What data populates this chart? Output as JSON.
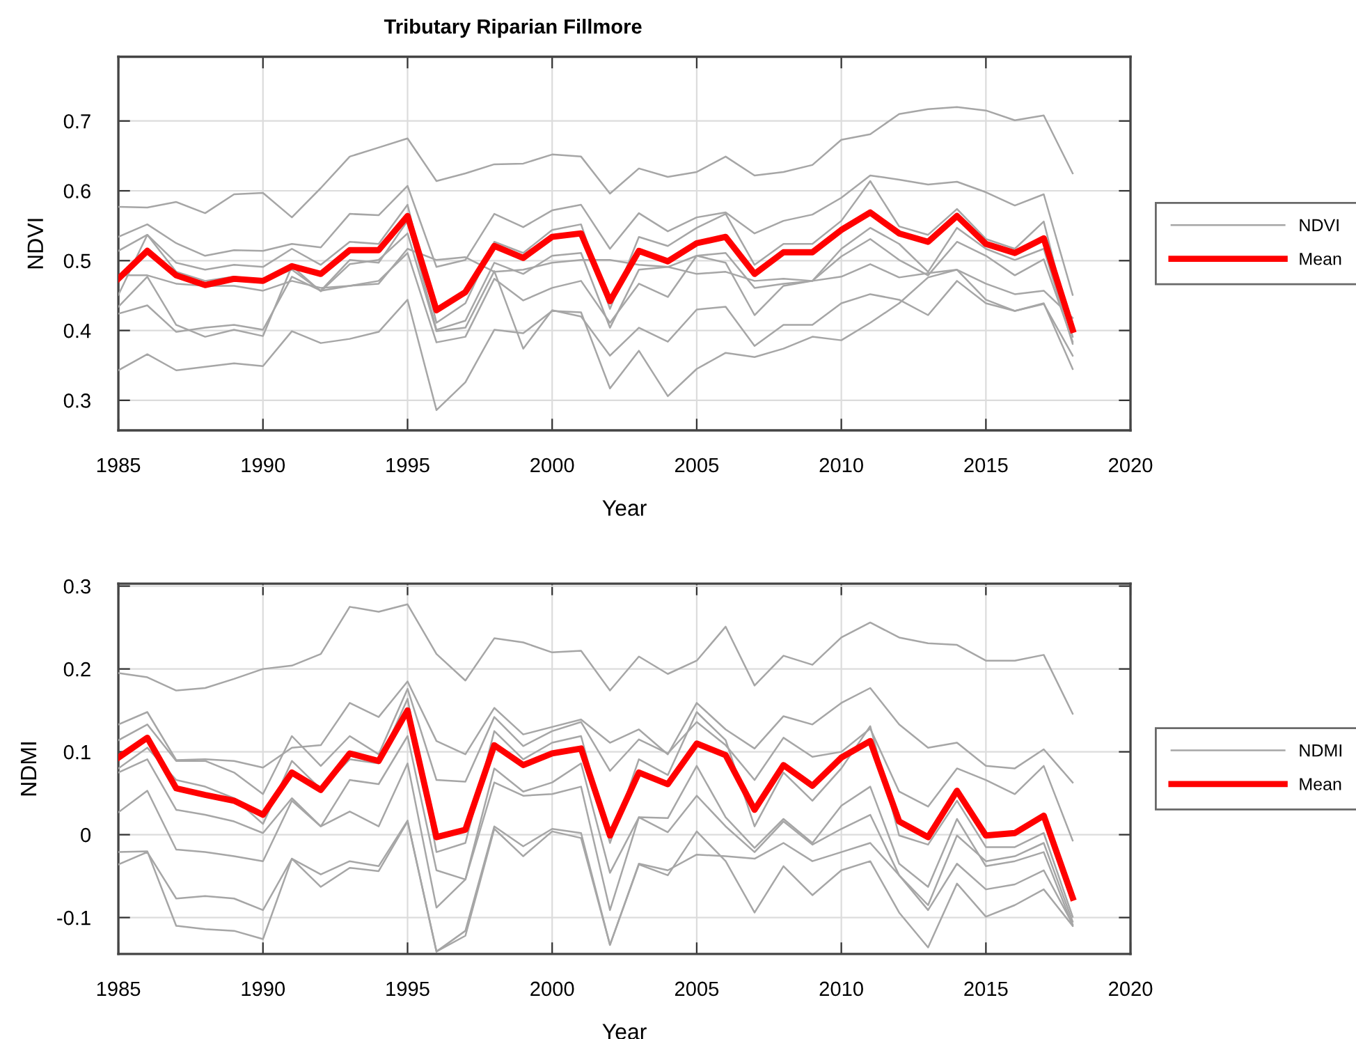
{
  "chart_data": [
    {
      "type": "line",
      "title": "Tributary Riparian Fillmore",
      "xlabel": "Year",
      "ylabel": "NDVI",
      "x": [
        1985,
        1986,
        1987,
        1988,
        1989,
        1990,
        1991,
        1992,
        1993,
        1994,
        1995,
        1996,
        1997,
        1998,
        1999,
        2000,
        2001,
        2002,
        2003,
        2004,
        2005,
        2006,
        2007,
        2008,
        2009,
        2010,
        2011,
        2012,
        2013,
        2014,
        2015,
        2016,
        2017,
        2018
      ],
      "xlim": [
        1985,
        2020
      ],
      "xticks": [
        1985,
        1990,
        1995,
        2000,
        2005,
        2010,
        2015,
        2020
      ],
      "ylim": [
        0.257,
        0.792
      ],
      "yticks": [
        0.3,
        0.4,
        0.5,
        0.6,
        0.7
      ],
      "grid": true,
      "legend": "right",
      "series": [
        {
          "name": "NDVI",
          "color": "#a6a6a6",
          "values": [
            0.577,
            0.576,
            0.584,
            0.568,
            0.595,
            0.597,
            0.562,
            0.604,
            0.649,
            0.662,
            0.675,
            0.614,
            0.625,
            0.638,
            0.639,
            0.652,
            0.649,
            0.596,
            0.632,
            0.62,
            0.627,
            0.649,
            0.622,
            0.627,
            0.637,
            0.673,
            0.681,
            0.71,
            0.717,
            0.72,
            0.715,
            0.701,
            0.708,
            0.625
          ]
        },
        {
          "color": "#a6a6a6",
          "values": [
            0.534,
            0.552,
            0.525,
            0.507,
            0.515,
            0.514,
            0.524,
            0.519,
            0.567,
            0.565,
            0.607,
            0.491,
            0.501,
            0.567,
            0.548,
            0.572,
            0.58,
            0.517,
            0.568,
            0.542,
            0.562,
            0.569,
            0.539,
            0.557,
            0.566,
            0.59,
            0.622,
            0.616,
            0.609,
            0.613,
            0.598,
            0.579,
            0.595,
            0.451
          ]
        },
        {
          "color": "#a6a6a6",
          "values": [
            0.343,
            0.366,
            0.343,
            0.348,
            0.353,
            0.349,
            0.399,
            0.382,
            0.388,
            0.398,
            0.444,
            0.286,
            0.326,
            0.401,
            0.396,
            0.428,
            0.426,
            0.317,
            0.371,
            0.306,
            0.345,
            0.368,
            0.362,
            0.374,
            0.391,
            0.386,
            0.411,
            0.439,
            0.476,
            0.487,
            0.444,
            0.428,
            0.439,
            0.345
          ]
        },
        {
          "color": "#a6a6a6",
          "values": [
            0.424,
            0.436,
            0.398,
            0.404,
            0.408,
            0.401,
            0.477,
            0.457,
            0.464,
            0.471,
            0.511,
            0.383,
            0.391,
            0.474,
            0.443,
            0.461,
            0.471,
            0.411,
            0.467,
            0.448,
            0.507,
            0.497,
            0.422,
            0.464,
            0.471,
            0.506,
            0.531,
            0.501,
            0.479,
            0.527,
            0.507,
            0.479,
            0.502,
            0.384
          ]
        },
        {
          "color": "#a6a6a6",
          "values": [
            0.434,
            0.477,
            0.408,
            0.391,
            0.401,
            0.392,
            0.492,
            0.456,
            0.495,
            0.501,
            0.539,
            0.399,
            0.404,
            0.485,
            0.374,
            0.429,
            0.42,
            0.364,
            0.404,
            0.384,
            0.43,
            0.434,
            0.378,
            0.408,
            0.408,
            0.439,
            0.452,
            0.444,
            0.422,
            0.471,
            0.439,
            0.428,
            0.438,
            0.364
          ]
        },
        {
          "color": "#a6a6a6",
          "values": [
            0.479,
            0.479,
            0.467,
            0.464,
            0.464,
            0.457,
            0.471,
            0.461,
            0.464,
            0.467,
            0.517,
            0.501,
            0.505,
            0.484,
            0.487,
            0.497,
            0.501,
            0.501,
            0.494,
            0.491,
            0.481,
            0.484,
            0.471,
            0.474,
            0.471,
            0.477,
            0.495,
            0.476,
            0.482,
            0.487,
            0.467,
            0.452,
            0.457,
            0.418
          ]
        },
        {
          "color": "#a6a6a6",
          "values": [
            0.514,
            0.537,
            0.497,
            0.487,
            0.494,
            0.491,
            0.517,
            0.494,
            0.527,
            0.524,
            0.58,
            0.411,
            0.439,
            0.527,
            0.511,
            0.544,
            0.552,
            0.431,
            0.534,
            0.521,
            0.547,
            0.567,
            0.494,
            0.524,
            0.524,
            0.557,
            0.614,
            0.549,
            0.537,
            0.574,
            0.531,
            0.517,
            0.556,
            0.391
          ]
        },
        {
          "color": "#a6a6a6",
          "values": [
            0.451,
            0.537,
            0.484,
            0.471,
            0.477,
            0.471,
            0.487,
            0.457,
            0.501,
            0.497,
            0.557,
            0.401,
            0.414,
            0.497,
            0.481,
            0.507,
            0.511,
            0.404,
            0.487,
            0.491,
            0.507,
            0.511,
            0.461,
            0.467,
            0.471,
            0.517,
            0.547,
            0.524,
            0.484,
            0.547,
            0.517,
            0.501,
            0.517,
            0.381
          ]
        },
        {
          "name": "Mean",
          "color": "#ff0000",
          "values": [
            0.474,
            0.514,
            0.479,
            0.465,
            0.474,
            0.471,
            0.492,
            0.481,
            0.515,
            0.515,
            0.564,
            0.429,
            0.455,
            0.521,
            0.504,
            0.534,
            0.539,
            0.442,
            0.514,
            0.499,
            0.525,
            0.534,
            0.481,
            0.512,
            0.512,
            0.544,
            0.569,
            0.539,
            0.527,
            0.564,
            0.524,
            0.511,
            0.532,
            0.401
          ]
        }
      ]
    },
    {
      "type": "line",
      "xlabel": "Year",
      "ylabel": "NDMI",
      "x": [
        1985,
        1986,
        1987,
        1988,
        1989,
        1990,
        1991,
        1992,
        1993,
        1994,
        1995,
        1996,
        1997,
        1998,
        1999,
        2000,
        2001,
        2002,
        2003,
        2004,
        2005,
        2006,
        2007,
        2008,
        2009,
        2010,
        2011,
        2012,
        2013,
        2014,
        2015,
        2016,
        2017,
        2018
      ],
      "xlim": [
        1985,
        2020
      ],
      "xticks": [
        1985,
        1990,
        1995,
        2000,
        2005,
        2010,
        2015,
        2020
      ],
      "ylim": [
        -0.144,
        0.303
      ],
      "yticks": [
        -0.1,
        0,
        0.1,
        0.2,
        0.3
      ],
      "grid": true,
      "legend": "right",
      "series": [
        {
          "name": "NDMI",
          "color": "#a6a6a6",
          "values": [
            0.195,
            0.19,
            0.174,
            0.177,
            0.188,
            0.2,
            0.204,
            0.218,
            0.275,
            0.269,
            0.278,
            0.218,
            0.186,
            0.237,
            0.232,
            0.22,
            0.222,
            0.174,
            0.215,
            0.194,
            0.21,
            0.251,
            0.18,
            0.216,
            0.205,
            0.238,
            0.256,
            0.238,
            0.231,
            0.229,
            0.21,
            0.21,
            0.217,
            0.146
          ]
        },
        {
          "color": "#a6a6a6",
          "values": [
            0.133,
            0.148,
            0.09,
            0.091,
            0.089,
            0.081,
            0.105,
            0.108,
            0.159,
            0.142,
            0.185,
            0.113,
            0.097,
            0.153,
            0.121,
            0.13,
            0.139,
            0.111,
            0.127,
            0.097,
            0.159,
            0.127,
            0.104,
            0.143,
            0.133,
            0.159,
            0.177,
            0.133,
            0.105,
            0.111,
            0.083,
            0.08,
            0.103,
            0.063
          ]
        },
        {
          "color": "#a6a6a6",
          "values": [
            0.114,
            0.133,
            0.089,
            0.089,
            0.075,
            0.049,
            0.119,
            0.083,
            0.119,
            0.097,
            0.176,
            0.066,
            0.064,
            0.142,
            0.107,
            0.125,
            0.136,
            0.077,
            0.115,
            0.098,
            0.136,
            0.108,
            0.066,
            0.117,
            0.094,
            0.1,
            0.128,
            0.052,
            0.034,
            0.08,
            0.066,
            0.049,
            0.083,
            -0.007
          ]
        },
        {
          "color": "#a6a6a6",
          "values": [
            0.08,
            0.105,
            0.066,
            0.058,
            0.044,
            0.013,
            0.089,
            0.055,
            0.091,
            0.086,
            0.164,
            -0.021,
            -0.01,
            0.125,
            0.091,
            0.111,
            0.119,
            -0.01,
            0.091,
            0.072,
            0.148,
            0.114,
            0.01,
            0.075,
            0.041,
            0.08,
            0.131,
            -0.001,
            -0.012,
            0.041,
            -0.015,
            -0.015,
            0.002,
            -0.099
          ]
        },
        {
          "color": "#a6a6a6",
          "values": [
            0.075,
            0.091,
            0.03,
            0.024,
            0.016,
            0.002,
            0.044,
            0.01,
            0.066,
            0.061,
            0.119,
            -0.043,
            -0.054,
            0.08,
            0.052,
            0.063,
            0.086,
            -0.046,
            0.021,
            0.02,
            0.083,
            0.021,
            -0.016,
            0.019,
            -0.01,
            0.035,
            0.058,
            -0.035,
            -0.063,
            0.019,
            -0.038,
            -0.032,
            -0.021,
            -0.11
          ]
        },
        {
          "color": "#a6a6a6",
          "values": [
            0.027,
            0.053,
            -0.018,
            -0.021,
            -0.026,
            -0.032,
            0.041,
            0.01,
            0.028,
            0.01,
            0.086,
            -0.088,
            -0.054,
            0.063,
            0.047,
            0.049,
            0.058,
            -0.091,
            0.021,
            0.003,
            0.047,
            0.01,
            -0.021,
            0.016,
            -0.012,
            0.007,
            0.024,
            -0.049,
            -0.085,
            -0.001,
            -0.032,
            -0.026,
            -0.01,
            -0.105
          ]
        },
        {
          "color": "#a6a6a6",
          "values": [
            -0.036,
            -0.021,
            -0.077,
            -0.074,
            -0.077,
            -0.091,
            -0.029,
            -0.048,
            -0.032,
            -0.038,
            0.017,
            -0.141,
            -0.116,
            0.01,
            -0.014,
            0.007,
            0.002,
            -0.133,
            -0.035,
            -0.043,
            -0.024,
            -0.026,
            -0.029,
            -0.01,
            -0.032,
            -0.021,
            -0.01,
            -0.049,
            -0.091,
            -0.035,
            -0.066,
            -0.06,
            -0.043,
            -0.108
          ]
        },
        {
          "color": "#a6a6a6",
          "values": [
            -0.021,
            -0.02,
            -0.11,
            -0.114,
            -0.116,
            -0.126,
            -0.029,
            -0.063,
            -0.04,
            -0.044,
            0.016,
            -0.141,
            -0.122,
            0.007,
            -0.026,
            0.004,
            -0.004,
            -0.133,
            -0.036,
            -0.049,
            0.004,
            -0.032,
            -0.094,
            -0.038,
            -0.073,
            -0.043,
            -0.032,
            -0.094,
            -0.136,
            -0.059,
            -0.099,
            -0.085,
            -0.066,
            -0.11
          ]
        },
        {
          "name": "Mean",
          "color": "#ff0000",
          "values": [
            0.093,
            0.117,
            0.056,
            0.048,
            0.041,
            0.024,
            0.075,
            0.054,
            0.098,
            0.089,
            0.15,
            -0.003,
            0.006,
            0.108,
            0.084,
            0.098,
            0.104,
            -0.001,
            0.075,
            0.061,
            0.11,
            0.096,
            0.03,
            0.084,
            0.059,
            0.093,
            0.113,
            0.016,
            -0.003,
            0.053,
            -0.001,
            0.002,
            0.023,
            -0.076
          ]
        }
      ]
    }
  ]
}
